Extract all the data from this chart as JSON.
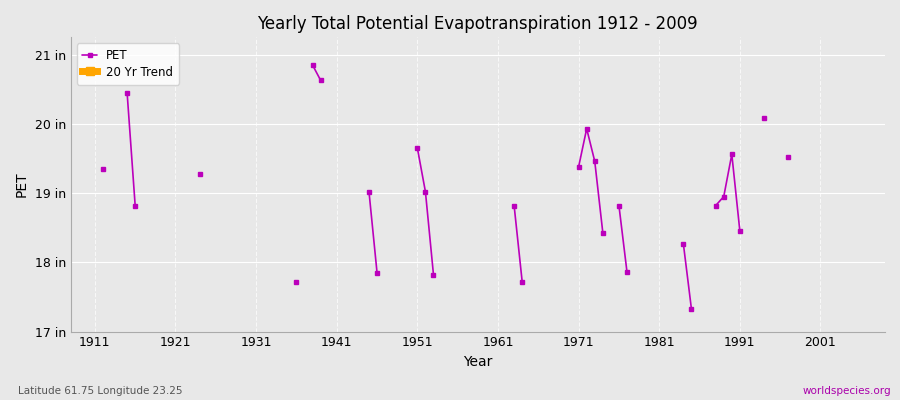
{
  "title": "Yearly Total Potential Evapotranspiration 1912 - 2009",
  "xlabel": "Year",
  "ylabel": "PET",
  "subtitle_left": "Latitude 61.75 Longitude 23.25",
  "subtitle_right": "worldspecies.org",
  "ylim": [
    17,
    21.25
  ],
  "xlim": [
    1908,
    2009
  ],
  "ytick_labels": [
    "17 in",
    "18 in",
    "19 in",
    "20 in",
    "21 in"
  ],
  "ytick_values": [
    17,
    18,
    19,
    20,
    21
  ],
  "xtick_values": [
    1911,
    1921,
    1931,
    1941,
    1951,
    1961,
    1971,
    1981,
    1991,
    2001
  ],
  "xtick_labels": [
    "1911",
    "1921",
    "1931",
    "1941",
    "1951",
    "1961",
    "1971",
    "1981",
    "1991",
    "2001"
  ],
  "pet_color": "#BB00BB",
  "trend_color": "#FFA500",
  "bg_color": "#E8E8E8",
  "grid_color": "#FFFFFF",
  "pet_data": [
    [
      1912,
      19.35
    ],
    [
      1913,
      null
    ],
    [
      1915,
      20.45
    ],
    [
      1916,
      18.82
    ],
    [
      1917,
      null
    ],
    [
      1924,
      19.27
    ],
    [
      1925,
      null
    ],
    [
      1936,
      17.72
    ],
    [
      1937,
      null
    ],
    [
      1938,
      20.85
    ],
    [
      1939,
      20.63
    ],
    [
      1940,
      null
    ],
    [
      1945,
      19.02
    ],
    [
      1946,
      17.85
    ],
    [
      1947,
      null
    ],
    [
      1951,
      19.65
    ],
    [
      1952,
      19.02
    ],
    [
      1953,
      17.82
    ],
    [
      1954,
      null
    ],
    [
      1963,
      18.82
    ],
    [
      1964,
      17.72
    ],
    [
      1965,
      null
    ],
    [
      1971,
      19.38
    ],
    [
      1972,
      19.93
    ],
    [
      1973,
      19.46
    ],
    [
      1974,
      18.43
    ],
    [
      1975,
      null
    ],
    [
      1976,
      18.82
    ],
    [
      1977,
      17.86
    ],
    [
      1978,
      null
    ],
    [
      1984,
      18.26
    ],
    [
      1985,
      17.32
    ],
    [
      1986,
      null
    ],
    [
      1988,
      18.82
    ],
    [
      1989,
      18.95
    ],
    [
      1990,
      19.56
    ],
    [
      1991,
      18.45
    ],
    [
      1992,
      null
    ],
    [
      1994,
      20.08
    ],
    [
      1995,
      null
    ],
    [
      1997,
      19.52
    ],
    [
      1998,
      null
    ]
  ],
  "legend_pet_label": "PET",
  "legend_trend_label": "20 Yr Trend"
}
